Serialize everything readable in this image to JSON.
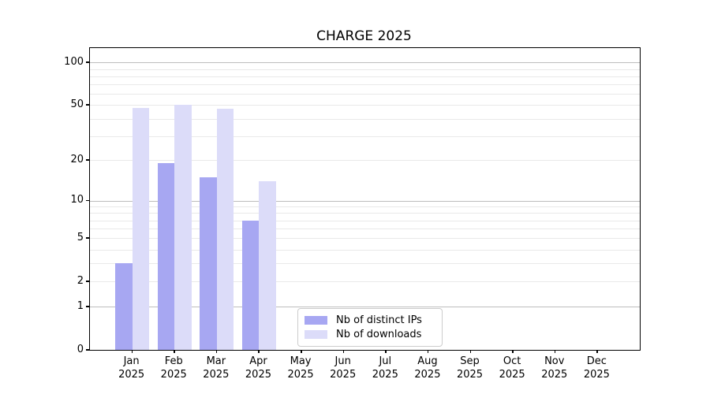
{
  "title": "CHARGE 2025",
  "chart_data": {
    "type": "bar",
    "title": "CHARGE 2025",
    "categories": [
      "Jan",
      "Feb",
      "Mar",
      "Apr",
      "May",
      "Jun",
      "Jul",
      "Aug",
      "Sep",
      "Oct",
      "Nov",
      "Dec"
    ],
    "category_year": "2025",
    "series": [
      {
        "name": "Nb of distinct IPs",
        "color": "#a7a7f2",
        "values": [
          3,
          19,
          15,
          7,
          null,
          null,
          null,
          null,
          null,
          null,
          null,
          null
        ]
      },
      {
        "name": "Nb of downloads",
        "color": "#dcdcf9",
        "values": [
          48,
          50,
          47,
          14,
          null,
          null,
          null,
          null,
          null,
          null,
          null,
          null
        ]
      }
    ],
    "xlabel": "",
    "ylabel": "",
    "yscale": "log1p",
    "ylim": [
      0,
      126.5
    ],
    "yticks": [
      0,
      1,
      2,
      5,
      10,
      20,
      50,
      100
    ],
    "major_gridlines": [
      1,
      10,
      100
    ],
    "minor_gridlines": [
      2,
      3,
      4,
      5,
      6,
      7,
      8,
      9,
      20,
      30,
      40,
      50,
      60,
      70,
      80,
      90
    ],
    "grid": "horizontal",
    "legend_position": "lower-left-of-center"
  },
  "colors": {
    "major_grid": "#bdbdbd",
    "minor_grid": "#e9e9e9",
    "spine": "#000000",
    "text": "#000000",
    "legend_border": "#cccccc",
    "background": "#ffffff"
  }
}
